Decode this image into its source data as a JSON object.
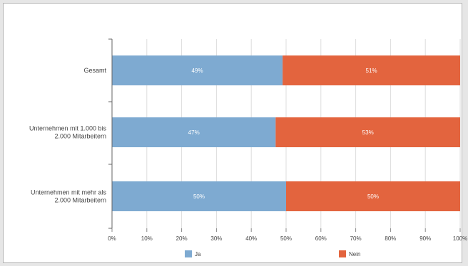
{
  "chart_data": {
    "type": "bar",
    "orientation": "horizontal",
    "stacked": true,
    "title": "",
    "xlabel": "",
    "ylabel": "",
    "categories": [
      "Gesamt",
      "Unternehmen mit 1.000 bis 2.000 Mitarbeitern",
      "Unternehmen mit mehr als 2.000 Mitarbeitern"
    ],
    "categories_display": [
      [
        "Gesamt"
      ],
      [
        "Unternehmen mit 1.000 bis",
        "2.000 Mitarbeitern"
      ],
      [
        "Unternehmen mit mehr als",
        "2.000 Mitarbeitern"
      ]
    ],
    "series": [
      {
        "name": "Ja",
        "values": [
          49,
          47,
          50
        ],
        "labels": [
          "49%",
          "47%",
          "50%"
        ]
      },
      {
        "name": "Nein",
        "values": [
          51,
          53,
          50
        ],
        "labels": [
          "51%",
          "53%",
          "50%"
        ]
      }
    ],
    "xlim": [
      0,
      100
    ],
    "x_ticks": [
      "0%",
      "10%",
      "20%",
      "30%",
      "40%",
      "50%",
      "60%",
      "70%",
      "80%",
      "90%",
      "100%"
    ],
    "grid": true,
    "legend": "bottom",
    "colors": {
      "series0": "#7eaad1",
      "series1": "#e3643e",
      "grid": "#dddddd",
      "text": "#444444"
    }
  }
}
